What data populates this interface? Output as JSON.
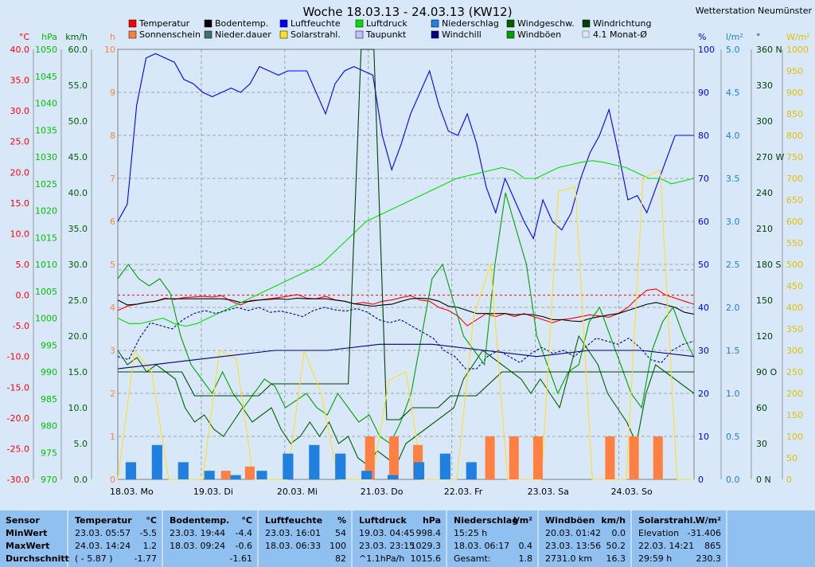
{
  "title": "Woche 18.03.13 - 24.03.13 (KW12)",
  "station": "Wetterstation Neumünster",
  "legend": [
    {
      "label": "Temperatur",
      "color": "#ff0000"
    },
    {
      "label": "Bodentemp.",
      "color": "#000000"
    },
    {
      "label": "Luftfeuchte",
      "color": "#0000ff"
    },
    {
      "label": "Luftdruck",
      "color": "#00e000"
    },
    {
      "label": "Niederschlag",
      "color": "#2080e0"
    },
    {
      "label": "Windgeschw.",
      "color": "#006000"
    },
    {
      "label": "Windrichtung",
      "color": "#004000"
    },
    {
      "label": "Sonnenschein",
      "color": "#ff8040"
    },
    {
      "label": "Nieder.dauer",
      "color": "#407070"
    },
    {
      "label": "Solarstrahl.",
      "color": "#ffe020"
    },
    {
      "label": "Taupunkt",
      "color": "#c0c0ff"
    },
    {
      "label": "Windchill",
      "color": "#000080"
    },
    {
      "label": "Windböen",
      "color": "#00a000"
    },
    {
      "label": "4.1 Monat-Ø",
      "color": "#a0a0a0"
    }
  ],
  "axes": {
    "temp": {
      "unit": "°C",
      "ticks": [
        "40.0",
        "35.0",
        "30.0",
        "25.0",
        "20.0",
        "15.0",
        "10.0",
        "5.0",
        "0.0",
        "-5.0",
        "-10.0",
        "-15.0",
        "-20.0",
        "-25.0",
        "-30.0"
      ],
      "color": "#ff0000"
    },
    "hpa": {
      "unit": "hPa",
      "ticks": [
        "1050",
        "1045",
        "1040",
        "1035",
        "1030",
        "1025",
        "1020",
        "1015",
        "1010",
        "1005",
        "1000",
        "995",
        "990",
        "985",
        "980",
        "975",
        "970"
      ],
      "color": "#00c000"
    },
    "kmh": {
      "unit": "km/h",
      "ticks": [
        "60.0",
        "55.0",
        "50.0",
        "45.0",
        "40.0",
        "35.0",
        "30.0",
        "25.0",
        "20.0",
        "15.0",
        "10.0",
        "5.0",
        "0.0"
      ],
      "color": "#006000"
    },
    "h": {
      "unit": "h",
      "ticks": [
        "10",
        "9",
        "8",
        "7",
        "6",
        "5",
        "4",
        "3",
        "2",
        "1",
        "0"
      ],
      "color": "#ff8040"
    },
    "pct": {
      "unit": "%",
      "ticks": [
        "100",
        "90",
        "80",
        "70",
        "60",
        "50",
        "40",
        "30",
        "20",
        "10",
        "0"
      ],
      "color": "#0000ff"
    },
    "lm2": {
      "unit": "l/m²",
      "ticks": [
        "5.0",
        "4.5",
        "4.0",
        "3.5",
        "3.0",
        "2.5",
        "2.0",
        "1.5",
        "1.0",
        "0.5",
        "0.0"
      ],
      "color": "#2080e0"
    },
    "deg": {
      "unit": "°",
      "ticks": [
        "360 N",
        "330",
        "300",
        "270 W",
        "240",
        "210",
        "180 S",
        "150",
        "120",
        "90 O",
        "60",
        "30",
        "0 N"
      ],
      "color": "#004000"
    },
    "wm2": {
      "unit": "W/m²",
      "ticks": [
        "1000",
        "950",
        "900",
        "850",
        "800",
        "750",
        "700",
        "650",
        "600",
        "550",
        "500",
        "450",
        "400",
        "350",
        "300",
        "250",
        "200",
        "150",
        "100",
        "50",
        "0"
      ],
      "color": "#e0c000"
    }
  },
  "xlabels": [
    "18.03.  Mo",
    "19.03.  Di",
    "20.03.  Mi",
    "21.03.  Do",
    "22.03.  Fr",
    "23.03.  Sa",
    "24.03.  So"
  ],
  "chart_data": {
    "type": "line",
    "title": "Woche 18.03.13 - 24.03.13 (KW12)",
    "x_start": "18.03.",
    "x_end": "24.03.",
    "series": [
      {
        "name": "Temperatur",
        "unit": "°C",
        "color": "#ff0000",
        "ylim": [
          -30,
          40
        ],
        "values": [
          -2.5,
          -1.8,
          -1.5,
          -1.2,
          -1.0,
          -0.5,
          -0.7,
          -0.4,
          -0.3,
          -0.2,
          -0.3,
          -0.1,
          -1.0,
          -1.6,
          -0.9,
          -0.8,
          -0.6,
          -0.4,
          -0.2,
          0.1,
          -0.5,
          -0.6,
          -0.2,
          -0.8,
          -1.0,
          -1.4,
          -1.2,
          -1.5,
          -1.0,
          -0.8,
          -0.4,
          -0.1,
          -0.8,
          -1.0,
          -2.0,
          -2.5,
          -3.4,
          -5.0,
          -4.0,
          -3.0,
          -3.5,
          -3.0,
          -3.5,
          -3.0,
          -3.5,
          -4.0,
          -4.5,
          -4.0,
          -3.8,
          -3.5,
          -3.2,
          -3.4,
          -3.6,
          -3.0,
          -2.0,
          -0.5,
          0.8,
          1.0,
          0.0,
          -0.5,
          -1.0,
          -1.5
        ]
      },
      {
        "name": "Bodentemp.",
        "unit": "°C",
        "color": "#000000",
        "ylim": [
          -30,
          40
        ],
        "values": [
          -0.8,
          -1.6,
          -1.5,
          -1.2,
          -1.0,
          -0.6,
          -0.6,
          -0.6,
          -0.6,
          -0.6,
          -0.6,
          -0.6,
          -0.8,
          -1.2,
          -1.0,
          -0.8,
          -0.7,
          -0.6,
          -0.7,
          -0.5,
          -0.6,
          -0.6,
          -0.6,
          -0.8,
          -1.0,
          -1.4,
          -1.6,
          -1.8,
          -1.6,
          -1.5,
          -1.0,
          -0.6,
          -0.5,
          -0.6,
          -1.0,
          -1.8,
          -2.0,
          -2.5,
          -3.0,
          -3.0,
          -3.0,
          -3.0,
          -3.2,
          -3.1,
          -3.2,
          -3.5,
          -4.0,
          -4.0,
          -4.2,
          -4.3,
          -3.8,
          -3.5,
          -3.2,
          -3.0,
          -2.5,
          -2.0,
          -1.5,
          -1.2,
          -1.6,
          -2.0,
          -2.8,
          -3.1
        ]
      },
      {
        "name": "Luftfeuchte",
        "unit": "%",
        "color": "#0000ff",
        "ylim": [
          0,
          100
        ],
        "values": [
          60,
          64,
          87,
          98,
          99,
          98,
          97,
          93,
          92,
          90,
          89,
          90,
          91,
          90,
          92,
          96,
          95,
          94,
          95,
          95,
          95,
          90,
          85,
          92,
          95,
          96,
          95,
          94,
          80,
          72,
          78,
          85,
          90,
          95,
          87,
          81,
          80,
          85,
          78,
          68,
          62,
          70,
          65,
          60,
          56,
          65,
          60,
          58,
          62,
          70,
          76,
          80,
          86,
          76,
          65,
          66,
          62,
          68,
          74,
          80,
          80,
          80
        ]
      },
      {
        "name": "Luftdruck",
        "unit": "hPa",
        "color": "#00e000",
        "ylim": [
          970,
          1050
        ],
        "values": [
          1000,
          999,
          999,
          999.5,
          1000,
          999,
          998.5,
          999,
          1000,
          1001,
          1002,
          1003,
          1004,
          1005,
          1006,
          1007,
          1008,
          1009,
          1010,
          1012,
          1014,
          1016,
          1018,
          1019,
          1020,
          1021,
          1022,
          1023,
          1024,
          1025,
          1026,
          1026.5,
          1027,
          1027.5,
          1028,
          1027.5,
          1026,
          1026,
          1027,
          1028,
          1028.5,
          1029,
          1029.3,
          1029,
          1028.5,
          1028,
          1027,
          1026,
          1026,
          1025,
          1025.5,
          1026
        ]
      },
      {
        "name": "Taupunkt",
        "unit": "°C",
        "color": "#0000a0",
        "ylim": [
          -30,
          40
        ],
        "values": [
          -10,
          -10.5,
          -7,
          -4.5,
          -5,
          -5.5,
          -4,
          -3,
          -2.5,
          -3,
          -2.5,
          -2,
          -2.5,
          -2,
          -2.8,
          -2.6,
          -3,
          -3.5,
          -2.5,
          -2.0,
          -2.4,
          -2.6,
          -2.2,
          -2.8,
          -4.0,
          -4.5,
          -4.0,
          -5.0,
          -6.0,
          -7.0,
          -9.0,
          -10.0,
          -12.0,
          -12.0,
          -10.0,
          -9.0,
          -10.0,
          -11.0,
          -9.5,
          -8.5,
          -9.5,
          -9.0,
          -10.0,
          -8.5,
          -7.0,
          -7.5,
          -8.0,
          -7.0,
          -8.5,
          -10.5,
          -11.0,
          -9.0,
          -8.0,
          -7.5
        ]
      },
      {
        "name": "Windgeschw.",
        "unit": "km/h",
        "color": "#006000",
        "ylim": [
          0,
          60
        ],
        "values": [
          18,
          16,
          17,
          15,
          16,
          15,
          14,
          10,
          8,
          9,
          7,
          6,
          8,
          10,
          8,
          9,
          10,
          7,
          5,
          6,
          8,
          6,
          8,
          5,
          6,
          3,
          2,
          4,
          3,
          2,
          5,
          6,
          7,
          8,
          9,
          10,
          14,
          16,
          18,
          17,
          16,
          15,
          14,
          12,
          14,
          12,
          10,
          15,
          20,
          18,
          16,
          12,
          10,
          8,
          5,
          12,
          16,
          15,
          14,
          13,
          12
        ]
      },
      {
        "name": "Windböen",
        "unit": "km/h",
        "color": "#00a000",
        "ylim": [
          0,
          60
        ],
        "values": [
          28,
          30,
          28,
          27,
          28,
          26,
          20,
          16,
          14,
          12,
          15,
          12,
          10,
          12,
          14,
          13,
          10,
          11,
          12,
          10,
          9,
          12,
          10,
          8,
          9,
          6,
          5,
          8,
          12,
          20,
          28,
          30,
          25,
          20,
          18,
          16,
          30,
          40,
          35,
          30,
          20,
          16,
          12,
          15,
          16,
          22,
          24,
          20,
          16,
          12,
          10,
          18,
          22,
          24,
          20,
          17
        ]
      },
      {
        "name": "Windrichtung",
        "unit": "°",
        "color": "#004000",
        "ylim": [
          0,
          360
        ],
        "values": [
          90,
          90,
          90,
          90,
          90,
          90,
          70,
          70,
          70,
          70,
          70,
          70,
          80,
          80,
          80,
          80,
          80,
          80,
          80,
          360,
          360,
          50,
          50,
          60,
          60,
          60,
          70,
          70,
          70,
          80,
          90,
          90,
          90,
          90,
          90,
          90,
          90,
          90,
          90,
          90,
          90,
          90,
          90,
          90,
          90,
          90
        ]
      },
      {
        "name": "Solarstrahl.",
        "unit": "W/m²",
        "color": "#ffe020",
        "ylim": [
          0,
          1000
        ],
        "values": [
          0,
          300,
          250,
          0,
          0,
          0,
          300,
          280,
          0,
          0,
          0,
          300,
          200,
          0,
          0,
          0,
          230,
          250,
          0,
          0,
          0,
          380,
          500,
          0,
          0,
          0,
          670,
          680,
          0,
          0,
          0,
          700,
          720,
          0,
          0
        ]
      },
      {
        "name": "Sonnenschein",
        "unit": "h",
        "color": "#ff8040",
        "ylim": [
          0,
          10
        ],
        "values": [
          0,
          0,
          0,
          0,
          0.2,
          0.3,
          0,
          0,
          0,
          0,
          1.0,
          1.0,
          0.8,
          0,
          0,
          1.0,
          1.0,
          1.0,
          0,
          0,
          1.0,
          1.0,
          1.0,
          0
        ]
      },
      {
        "name": "Niederschlag",
        "unit": "l/m²",
        "color": "#2080e0",
        "ylim": [
          0,
          5
        ],
        "values": [
          0.2,
          0.4,
          0.2,
          0.1,
          0.05,
          0.1,
          0.3,
          0.4,
          0.3,
          0.1,
          0.05,
          0.2,
          0.3,
          0.2,
          0,
          0,
          0,
          0,
          0,
          0,
          0,
          0
        ]
      },
      {
        "name": "Windchill",
        "unit": "°C",
        "color": "#000080",
        "ylim": [
          -30,
          40
        ],
        "values": [
          -12,
          -11,
          -10,
          -9,
          -9,
          -8,
          -8,
          -9,
          -10,
          -9,
          -9,
          -10
        ]
      }
    ]
  },
  "stats": {
    "sensor": {
      "header": "Sensor",
      "rows": [
        "MinWert",
        "MaxWert",
        "Durchschnitt"
      ]
    },
    "temperatur": {
      "header": "Temperatur",
      "unit": "°C",
      "rows": [
        [
          "23.03.  05:57",
          "-5.5"
        ],
        [
          "24.03.  14:24",
          "1.2"
        ],
        [
          "( - 5.87 )",
          "-1.77"
        ]
      ]
    },
    "bodentemp": {
      "header": "Bodentemp.",
      "unit": "°C",
      "rows": [
        [
          "23.03.  19:44",
          "-4.4"
        ],
        [
          "18.03.  09:24",
          "-0.6"
        ],
        [
          "",
          "-1.61"
        ]
      ]
    },
    "luftfeuchte": {
      "header": "Luftfeuchte",
      "unit": "%",
      "rows": [
        [
          "23.03.  16:01",
          "54"
        ],
        [
          "18.03.  06:33",
          "100"
        ],
        [
          "",
          "82"
        ]
      ]
    },
    "luftdruck": {
      "header": "Luftdruck",
      "unit": "hPa",
      "rows": [
        [
          "19.03.  04:45",
          "998.4"
        ],
        [
          "23.03.  23:15",
          "1029.3"
        ],
        [
          "^1.1hPa/h",
          "1015.6"
        ]
      ]
    },
    "niederschlag": {
      "header": "Niederschlag",
      "unit": "l/m²",
      "rows": [
        [
          "15:25 h",
          ""
        ],
        [
          "18.03.  06:17",
          "0.4"
        ],
        [
          "Gesamt:",
          "1.8"
        ]
      ]
    },
    "windboeen": {
      "header": "Windböen",
      "unit": "km/h",
      "rows": [
        [
          "20.03.  01:42",
          "0.0"
        ],
        [
          "23.03.  13:56",
          "50.2"
        ],
        [
          "2731.0 km",
          "16.3"
        ]
      ]
    },
    "solarstrahl": {
      "header": "Solarstrahl.",
      "unit": "W/m²",
      "rows": [
        [
          "Elevation",
          "-31.406"
        ],
        [
          "22.03.  14:21",
          "865"
        ],
        [
          "29:59 h",
          "230.3"
        ]
      ]
    }
  }
}
